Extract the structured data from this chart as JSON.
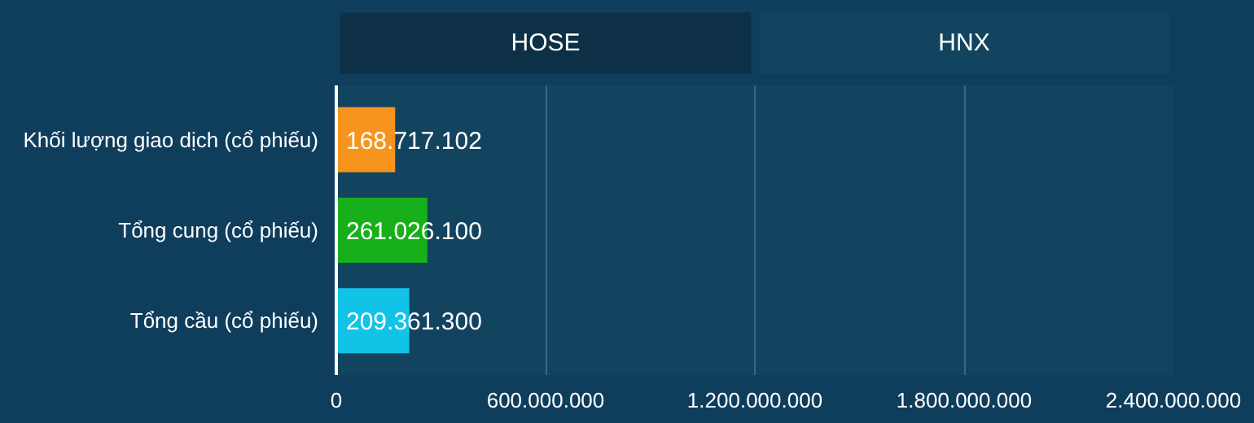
{
  "chart_data": {
    "type": "bar",
    "orientation": "horizontal",
    "annotations": [
      "HOSE",
      "HNX"
    ],
    "categories": [
      "Khối lượng giao dịch (cổ phiếu)",
      "Tổng cung (cổ phiếu)",
      "Tổng cầu (cổ phiếu)"
    ],
    "values": [
      168717102,
      261026100,
      209361300
    ],
    "colors": [
      "#f7941d",
      "#17b01a",
      "#12c3e8"
    ],
    "value_labels": [
      "168.717.102",
      "261.026.100",
      "209.361.300"
    ],
    "xlim": [
      0,
      2400000000
    ],
    "xticks": [
      0,
      {
        "value": 600000000,
        "label": "600.000.000"
      },
      {
        "value": 1200000000,
        "label": "1.200.000.000"
      },
      {
        "value": 1800000000,
        "label": "1.800.000.000"
      },
      {
        "value": 2400000000,
        "label": "2.400.000.000"
      }
    ],
    "grid": "x"
  }
}
